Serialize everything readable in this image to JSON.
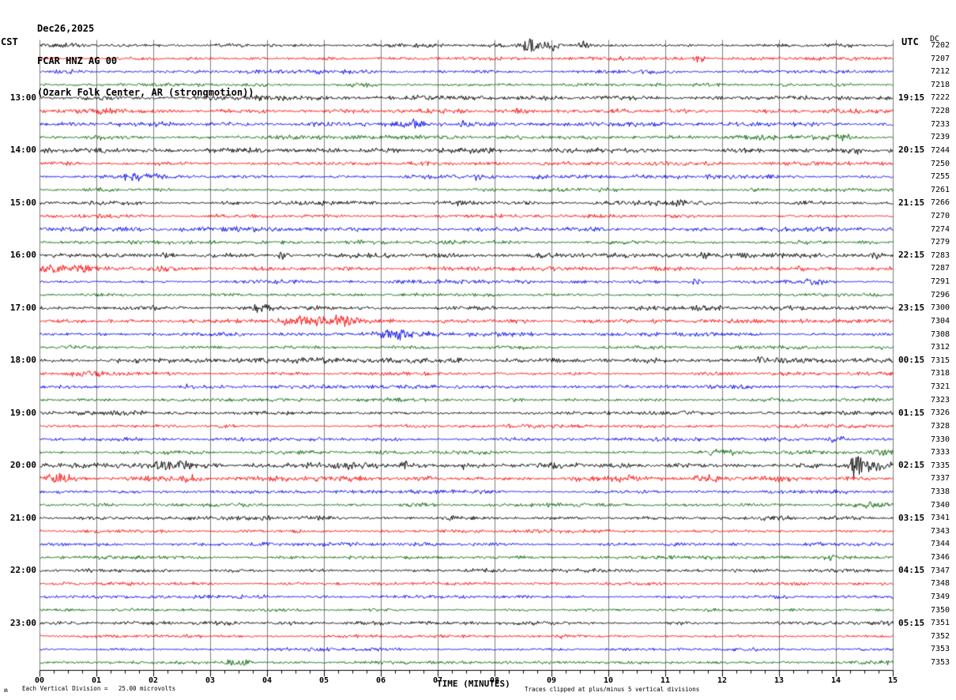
{
  "header": {
    "date": "Dec26,2025",
    "station": "FCAR HNZ AG 00",
    "location": "(Ozark Folk Center, AR (strongmotion))",
    "tz_left": "CST",
    "tz_right": "UTC",
    "dc_label": "DC"
  },
  "hour_rows": [
    {
      "row": 4,
      "cst": "13:00",
      "utc": "19:15"
    },
    {
      "row": 8,
      "cst": "14:00",
      "utc": "20:15"
    },
    {
      "row": 12,
      "cst": "15:00",
      "utc": "21:15"
    },
    {
      "row": 16,
      "cst": "16:00",
      "utc": "22:15"
    },
    {
      "row": 20,
      "cst": "17:00",
      "utc": "23:15"
    },
    {
      "row": 24,
      "cst": "18:00",
      "utc": "00:15"
    },
    {
      "row": 28,
      "cst": "19:00",
      "utc": "01:15"
    },
    {
      "row": 32,
      "cst": "20:00",
      "utc": "02:15"
    },
    {
      "row": 36,
      "cst": "21:00",
      "utc": "03:15"
    },
    {
      "row": 40,
      "cst": "22:00",
      "utc": "04:15"
    },
    {
      "row": 44,
      "cst": "23:00",
      "utc": "05:15"
    }
  ],
  "axis": {
    "tick_labels": [
      "00",
      "01",
      "02",
      "03",
      "04",
      "05",
      "06",
      "07",
      "08",
      "09",
      "10",
      "11",
      "12",
      "13",
      "14",
      "15"
    ],
    "minor_per_major": 4
  },
  "footer": {
    "logo": "ʍ",
    "scale_note": "Each Vertical Division =   25.00 microvolts",
    "time_label": "TIME (MINUTES)",
    "clip_note": "Traces clipped at plus/minus 5 vertical divisions"
  },
  "colors": {
    "black": "#000000",
    "red": "#ff0000",
    "blue": "#0000ee",
    "green": "#006600",
    "grid": "#7d7d7d",
    "axis": "#000000"
  },
  "chart_data": {
    "type": "line",
    "subtype": "helicorder-seismogram",
    "title": "FCAR HNZ AG 00 (Ozark Folk Center, AR (strongmotion)) Dec26,2025",
    "xlabel": "TIME (MINUTES)",
    "x_range": [
      0,
      15
    ],
    "minutes_per_row": 15,
    "rows": 48,
    "first_row_start_cst": "12:00",
    "left_axis_timezone": "CST",
    "right_axis_timezone": "UTC",
    "vertical_division_microvolts": 25.0,
    "clip_divisions": 5,
    "color_cycle": [
      "#000000",
      "#ff0000",
      "#0000ee",
      "#006600"
    ],
    "dc_offsets": [
      7202,
      7207,
      7212,
      7218,
      7222,
      7228,
      7233,
      7239,
      7244,
      7250,
      7255,
      7261,
      7266,
      7270,
      7274,
      7279,
      7283,
      7287,
      7291,
      7296,
      7300,
      7304,
      7308,
      7312,
      7315,
      7318,
      7321,
      7323,
      7326,
      7328,
      7330,
      7333,
      7335,
      7337,
      7338,
      7340,
      7341,
      7343,
      7344,
      7346,
      7347,
      7348,
      7349,
      7350,
      7351,
      7352,
      7353,
      7353
    ],
    "noise_scale": [
      1.1,
      1.0,
      1.1,
      1.0,
      1.3,
      1.2,
      1.3,
      1.1,
      1.6,
      1.0,
      1.1,
      1.0,
      1.3,
      1.0,
      1.4,
      1.1,
      1.3,
      1.2,
      1.1,
      1.0,
      1.3,
      1.1,
      1.1,
      1.0,
      1.4,
      1.0,
      1.0,
      1.0,
      1.4,
      1.0,
      1.0,
      1.1,
      1.7,
      1.5,
      1.0,
      1.1,
      1.3,
      1.0,
      1.0,
      1.0,
      1.1,
      0.9,
      0.9,
      0.9,
      1.1,
      0.9,
      0.9,
      1.0
    ],
    "events": [
      [
        0,
        0.575,
        0.01,
        8
      ],
      [
        0,
        0.6,
        0.007,
        7
      ],
      [
        0,
        0.634,
        0.005,
        6
      ],
      [
        1,
        0.773,
        0.004,
        5
      ],
      [
        3,
        0.378,
        0.01,
        3
      ],
      [
        5,
        0.07,
        0.022,
        3.5
      ],
      [
        6,
        0.33,
        0.018,
        3
      ],
      [
        6,
        0.435,
        0.018,
        5
      ],
      [
        6,
        0.5,
        0.012,
        3
      ],
      [
        7,
        0.075,
        0.018,
        3
      ],
      [
        7,
        0.84,
        0.045,
        2.5
      ],
      [
        7,
        0.93,
        0.02,
        3
      ],
      [
        8,
        0.955,
        0.01,
        4
      ],
      [
        10,
        0.115,
        0.018,
        3
      ],
      [
        10,
        0.51,
        0.007,
        3.5
      ],
      [
        10,
        0.585,
        0.007,
        3.5
      ],
      [
        12,
        0.75,
        0.007,
        4
      ],
      [
        15,
        0.97,
        0.01,
        2.5
      ],
      [
        16,
        0.285,
        0.005,
        5
      ],
      [
        16,
        0.78,
        0.004,
        6
      ],
      [
        16,
        0.977,
        0.008,
        5
      ],
      [
        17,
        0.012,
        0.018,
        6
      ],
      [
        17,
        0.05,
        0.014,
        5
      ],
      [
        17,
        0.145,
        0.018,
        4
      ],
      [
        18,
        0.77,
        0.006,
        4
      ],
      [
        18,
        0.91,
        0.014,
        4
      ],
      [
        20,
        0.26,
        0.01,
        4
      ],
      [
        21,
        0.315,
        0.028,
        6
      ],
      [
        21,
        0.355,
        0.018,
        5
      ],
      [
        22,
        0.42,
        0.022,
        6
      ],
      [
        24,
        0.845,
        0.005,
        5
      ],
      [
        24,
        0.92,
        0.005,
        4
      ],
      [
        25,
        0.06,
        0.018,
        4
      ],
      [
        26,
        0.17,
        0.008,
        3
      ],
      [
        30,
        0.93,
        0.01,
        3
      ],
      [
        31,
        0.8,
        0.018,
        3.5
      ],
      [
        31,
        0.985,
        0.012,
        4
      ],
      [
        32,
        0.155,
        0.018,
        5
      ],
      [
        32,
        0.43,
        0.006,
        5
      ],
      [
        32,
        0.5,
        0.006,
        4
      ],
      [
        32,
        0.63,
        0.006,
        4
      ],
      [
        32,
        0.958,
        0.006,
        17
      ],
      [
        32,
        0.975,
        0.008,
        6
      ],
      [
        33,
        0.02,
        0.018,
        6
      ],
      [
        33,
        0.175,
        0.01,
        4
      ],
      [
        33,
        0.68,
        0.012,
        4
      ],
      [
        33,
        0.78,
        0.014,
        5
      ],
      [
        33,
        0.87,
        0.012,
        4
      ],
      [
        35,
        0.97,
        0.018,
        4
      ],
      [
        38,
        0.91,
        0.01,
        3
      ],
      [
        39,
        0.925,
        0.012,
        3
      ],
      [
        45,
        0.62,
        0.008,
        2.5
      ],
      [
        47,
        0.235,
        0.012,
        3.5
      ]
    ]
  }
}
